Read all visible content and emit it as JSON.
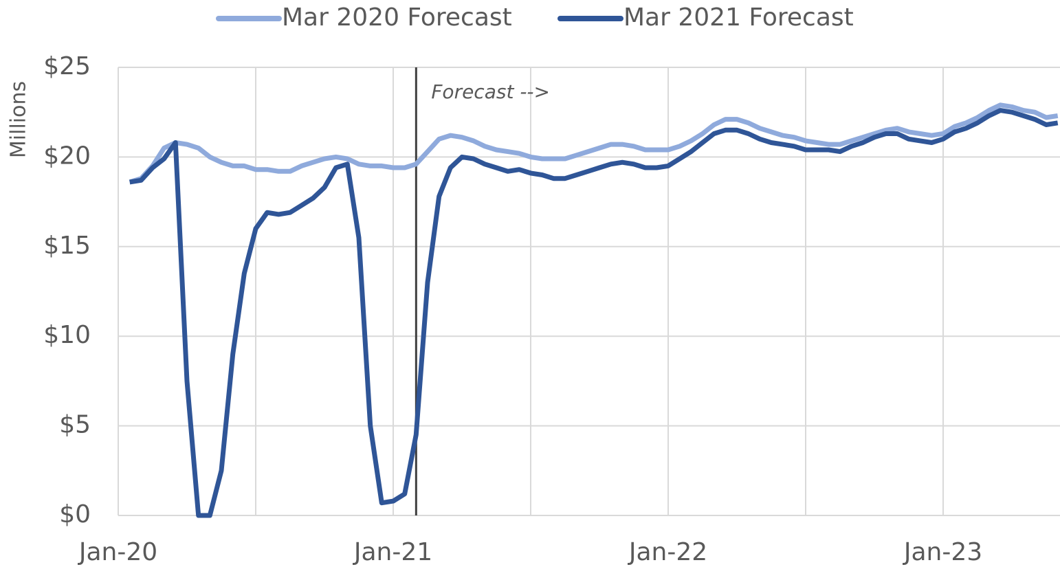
{
  "chart_data": {
    "type": "line",
    "y_axis_label": "Millions",
    "annotation": {
      "text": "Forecast -->",
      "category_index": 26
    },
    "categories": [
      "Jan-20",
      null,
      null,
      null,
      null,
      null,
      null,
      null,
      null,
      null,
      null,
      null,
      null,
      null,
      null,
      null,
      null,
      null,
      null,
      null,
      null,
      null,
      null,
      null,
      "Jan-21",
      null,
      null,
      null,
      null,
      null,
      null,
      null,
      null,
      null,
      null,
      null,
      null,
      null,
      null,
      null,
      null,
      null,
      null,
      null,
      null,
      null,
      null,
      null,
      "Jan-22",
      null,
      null,
      null,
      null,
      null,
      null,
      null,
      null,
      null,
      null,
      null,
      null,
      null,
      null,
      null,
      null,
      null,
      null,
      null,
      null,
      null,
      null,
      null,
      "Jan-23",
      null,
      null,
      null,
      null,
      null,
      null,
      null,
      null,
      null,
      null
    ],
    "series": [
      {
        "name": "Mar 2020 Forecast",
        "color": "#8faadc",
        "values": [
          null,
          18.6,
          18.8,
          19.5,
          20.5,
          20.8,
          20.7,
          20.5,
          20.0,
          19.7,
          19.5,
          19.5,
          19.3,
          19.3,
          19.2,
          19.2,
          19.5,
          19.7,
          19.9,
          20.0,
          19.9,
          19.6,
          19.5,
          19.5,
          19.4,
          19.4,
          19.6,
          20.3,
          21.0,
          21.2,
          21.1,
          20.9,
          20.6,
          20.4,
          20.3,
          20.2,
          20.0,
          19.9,
          19.9,
          19.9,
          20.1,
          20.3,
          20.5,
          20.7,
          20.7,
          20.6,
          20.4,
          20.4,
          20.4,
          20.6,
          20.9,
          21.3,
          21.8,
          22.1,
          22.1,
          21.9,
          21.6,
          21.4,
          21.2,
          21.1,
          20.9,
          20.8,
          20.7,
          20.7,
          20.9,
          21.1,
          21.3,
          21.5,
          21.6,
          21.4,
          21.3,
          21.2,
          21.3,
          21.7,
          21.9,
          22.2,
          22.6,
          22.9,
          22.8,
          22.6,
          22.5,
          22.2,
          22.3
        ]
      },
      {
        "name": "Mar 2021 Forecast",
        "color": "#2f5597",
        "values": [
          null,
          18.6,
          18.7,
          19.4,
          19.9,
          20.8,
          7.5,
          0,
          0,
          2.5,
          9,
          13.5,
          16,
          16.9,
          16.8,
          16.9,
          17.3,
          17.7,
          18.3,
          19.4,
          19.6,
          15.5,
          5,
          0.7,
          0.8,
          1.2,
          4.5,
          13,
          17.8,
          19.4,
          20.0,
          19.9,
          19.6,
          19.4,
          19.2,
          19.3,
          19.1,
          19.0,
          18.8,
          18.8,
          19.0,
          19.2,
          19.4,
          19.6,
          19.7,
          19.6,
          19.4,
          19.4,
          19.5,
          19.9,
          20.3,
          20.8,
          21.3,
          21.5,
          21.5,
          21.3,
          21.0,
          20.8,
          20.7,
          20.6,
          20.4,
          20.4,
          20.4,
          20.3,
          20.6,
          20.8,
          21.1,
          21.3,
          21.3,
          21.0,
          20.9,
          20.8,
          21.0,
          21.4,
          21.6,
          21.9,
          22.3,
          22.6,
          22.5,
          22.3,
          22.1,
          21.8,
          21.9
        ]
      }
    ],
    "ylim": [
      0,
      25
    ],
    "yticks": [
      {
        "value": 0,
        "label": "$0"
      },
      {
        "value": 5,
        "label": "$5"
      },
      {
        "value": 10,
        "label": "$10"
      },
      {
        "value": 15,
        "label": "$15"
      },
      {
        "value": 20,
        "label": "$20"
      },
      {
        "value": 25,
        "label": "$25"
      }
    ],
    "grid": true,
    "legend": "top"
  }
}
